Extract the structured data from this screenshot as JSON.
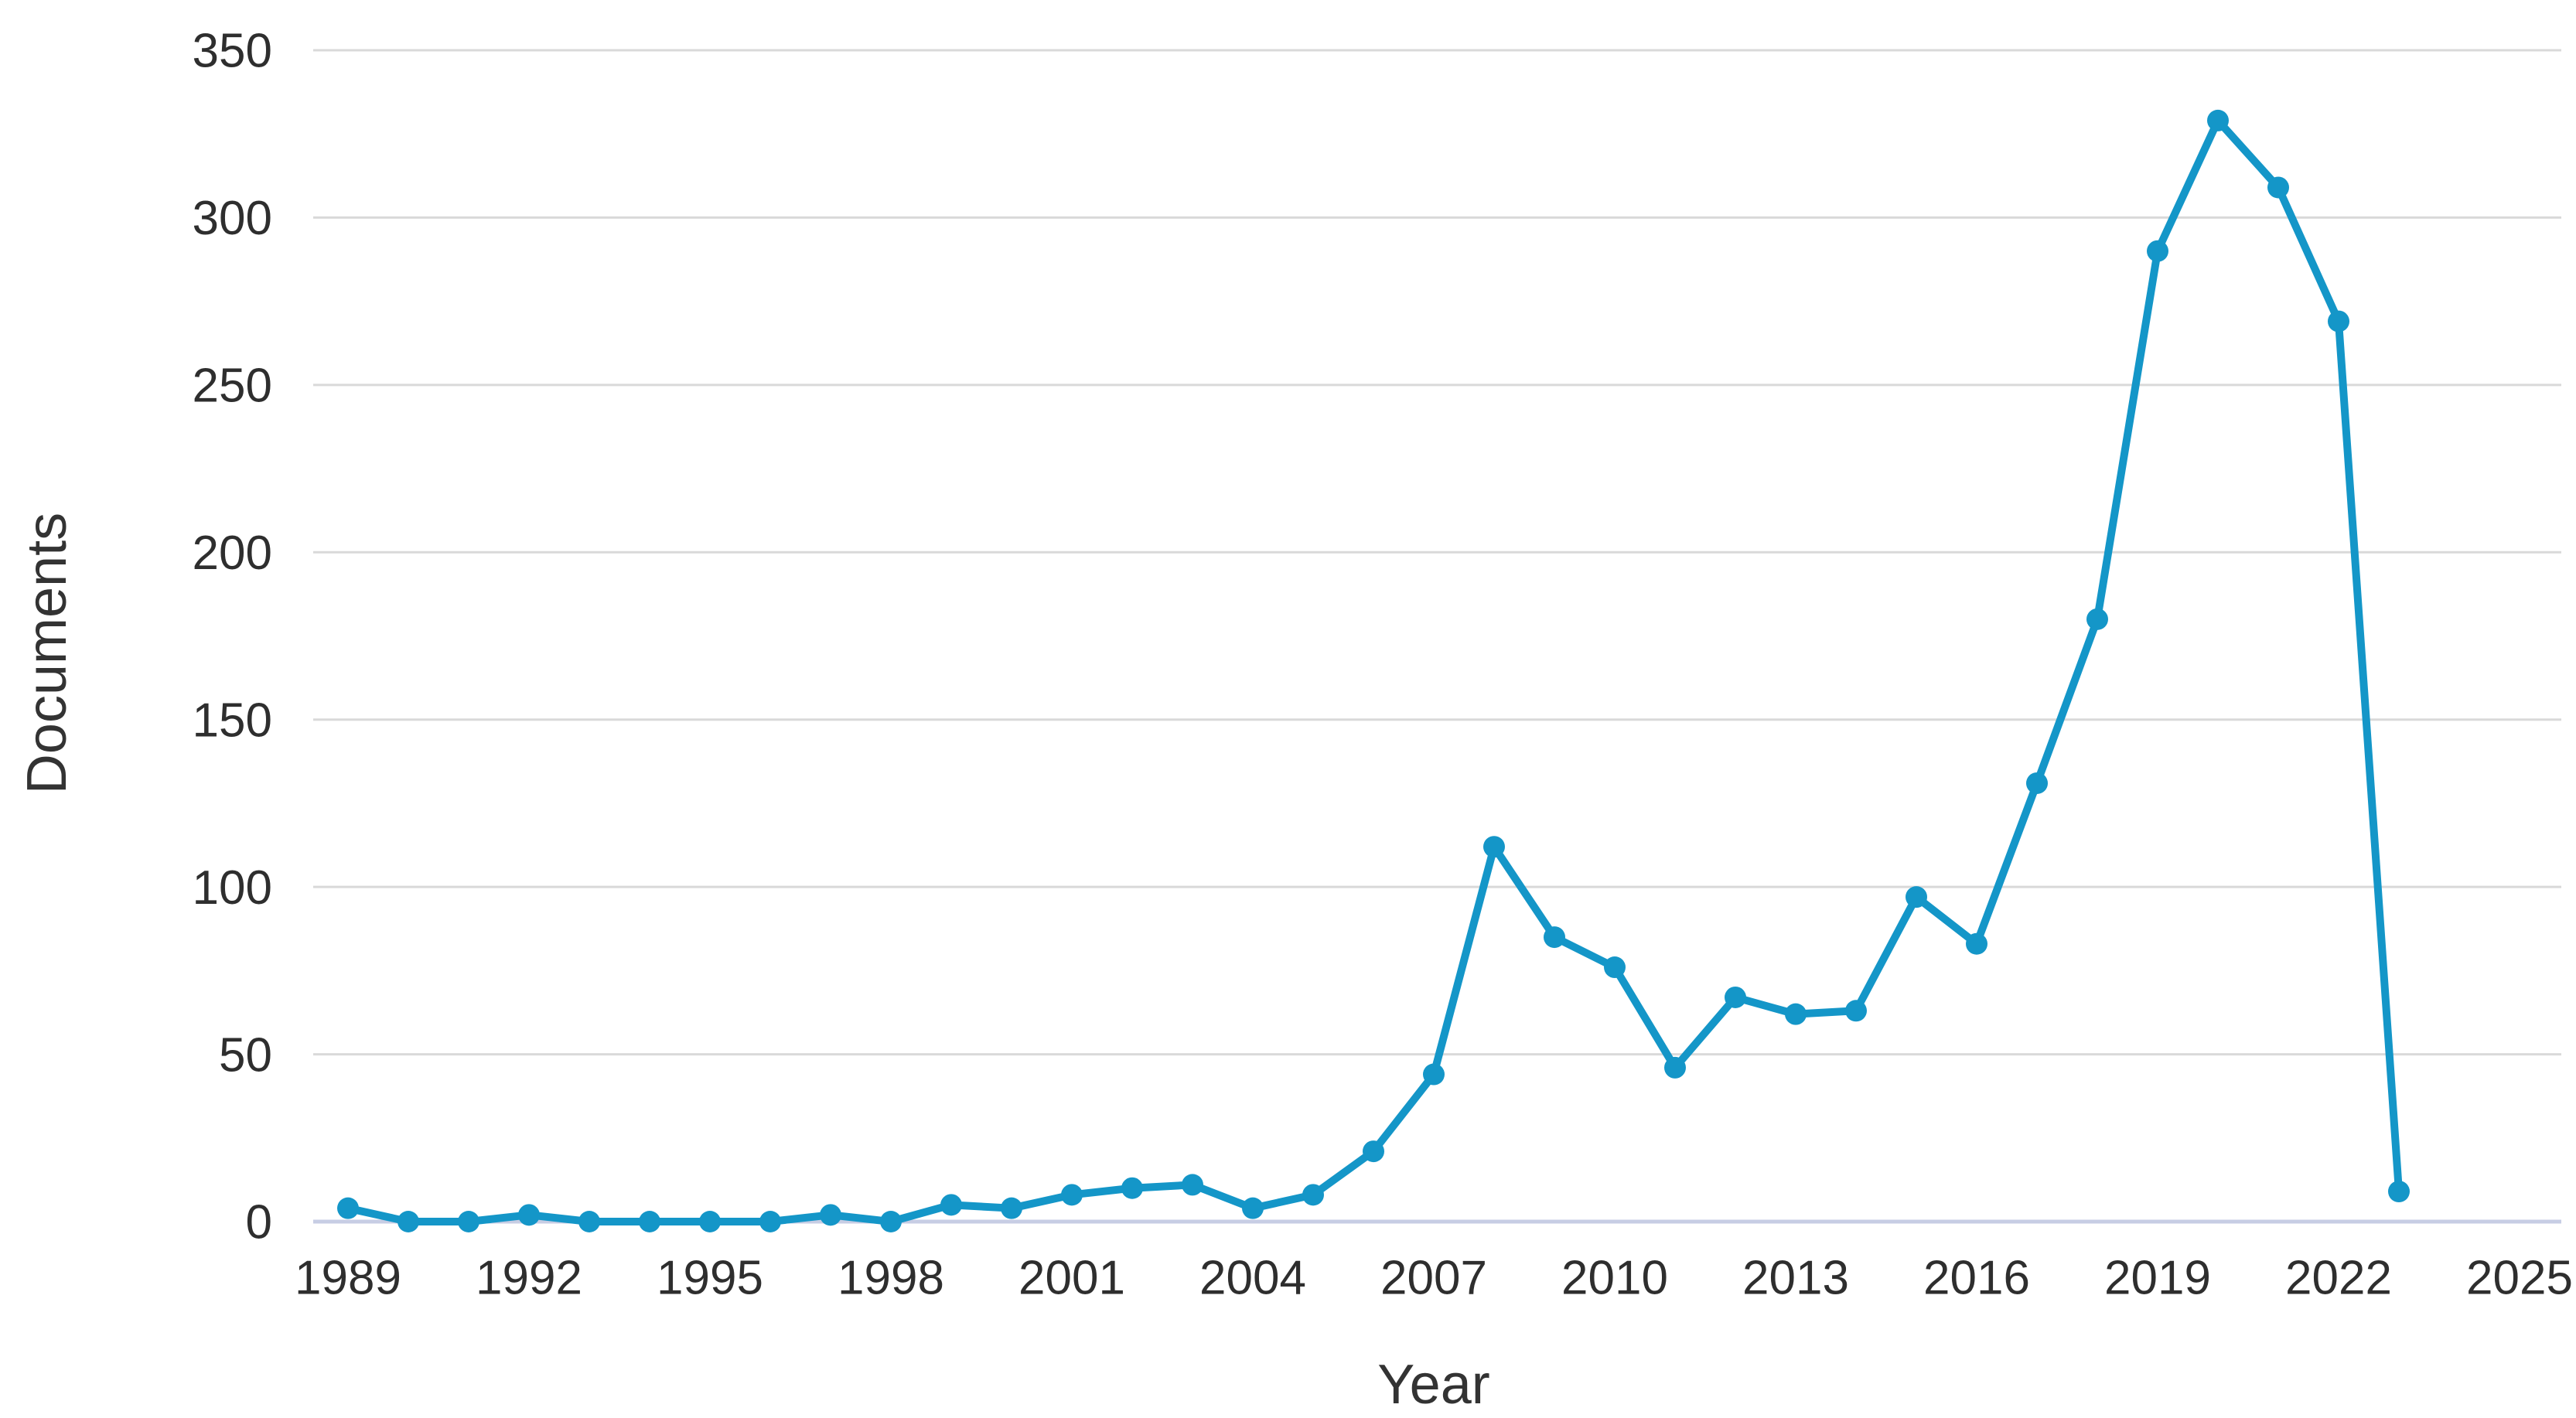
{
  "chart_data": {
    "type": "line",
    "title": "",
    "xlabel": "Year",
    "ylabel": "Documents",
    "x": [
      1989,
      1990,
      1991,
      1992,
      1993,
      1994,
      1995,
      1996,
      1997,
      1998,
      1999,
      2000,
      2001,
      2002,
      2003,
      2004,
      2005,
      2006,
      2007,
      2008,
      2009,
      2010,
      2011,
      2012,
      2013,
      2014,
      2015,
      2016,
      2017,
      2018,
      2019,
      2020,
      2021,
      2022,
      2023
    ],
    "series": [
      {
        "name": "Documents",
        "values": [
          4,
          0,
          0,
          2,
          0,
          0,
          0,
          0,
          2,
          0,
          5,
          4,
          8,
          10,
          11,
          4,
          8,
          21,
          44,
          112,
          85,
          76,
          46,
          67,
          62,
          63,
          97,
          83,
          131,
          180,
          290,
          329,
          309,
          269,
          9
        ]
      }
    ],
    "xlim": [
      1989,
      2025
    ],
    "ylim": [
      0,
      350
    ],
    "xticks": [
      1989,
      1992,
      1995,
      1998,
      2001,
      2004,
      2007,
      2010,
      2013,
      2016,
      2019,
      2022,
      2025
    ],
    "yticks": [
      0,
      50,
      100,
      150,
      200,
      250,
      300,
      350
    ],
    "grid": "horizontal-only",
    "legend": "none",
    "marker": "circle",
    "colors": {
      "line": "#1496c8",
      "marker": "#1496c8",
      "gridline": "#d9d9d9",
      "axis_baseline": "#c7cde4",
      "tick_text": "#2e2e2e",
      "axis_title_text": "#333333"
    }
  }
}
